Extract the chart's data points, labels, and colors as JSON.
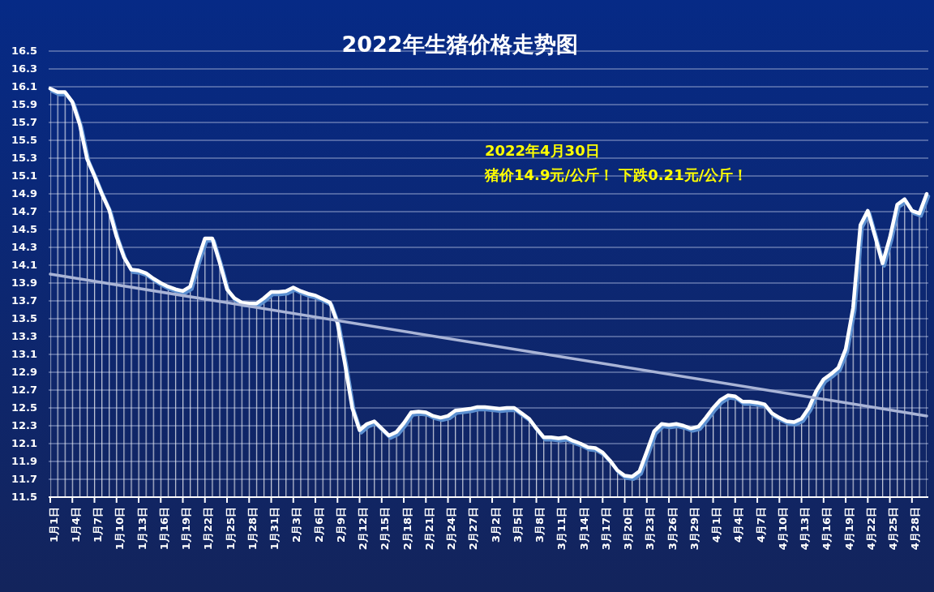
{
  "chart_data": {
    "type": "area",
    "title": "2022年生猪价格走势图",
    "annotations": [
      "2022年4月30日",
      "猪价14.9元/公斤！ 下跌0.21元/公斤！"
    ],
    "x": [
      "2022-01-01",
      "2022-01-02",
      "2022-01-03",
      "2022-01-04",
      "2022-01-05",
      "2022-01-06",
      "2022-01-07",
      "2022-01-08",
      "2022-01-09",
      "2022-01-10",
      "2022-01-11",
      "2022-01-12",
      "2022-01-13",
      "2022-01-14",
      "2022-01-15",
      "2022-01-16",
      "2022-01-17",
      "2022-01-18",
      "2022-01-19",
      "2022-01-20",
      "2022-01-21",
      "2022-01-22",
      "2022-01-23",
      "2022-01-24",
      "2022-01-25",
      "2022-01-26",
      "2022-01-27",
      "2022-01-28",
      "2022-01-29",
      "2022-01-30",
      "2022-01-31",
      "2022-02-01",
      "2022-02-02",
      "2022-02-03",
      "2022-02-04",
      "2022-02-05",
      "2022-02-06",
      "2022-02-07",
      "2022-02-08",
      "2022-02-09",
      "2022-02-10",
      "2022-02-11",
      "2022-02-12",
      "2022-02-13",
      "2022-02-14",
      "2022-02-15",
      "2022-02-16",
      "2022-02-17",
      "2022-02-18",
      "2022-02-19",
      "2022-02-20",
      "2022-02-21",
      "2022-02-22",
      "2022-02-23",
      "2022-02-24",
      "2022-02-25",
      "2022-02-26",
      "2022-02-27",
      "2022-02-28",
      "2022-03-01",
      "2022-03-02",
      "2022-03-03",
      "2022-03-04",
      "2022-03-05",
      "2022-03-06",
      "2022-03-07",
      "2022-03-08",
      "2022-03-09",
      "2022-03-10",
      "2022-03-11",
      "2022-03-12",
      "2022-03-13",
      "2022-03-14",
      "2022-03-15",
      "2022-03-16",
      "2022-03-17",
      "2022-03-18",
      "2022-03-19",
      "2022-03-20",
      "2022-03-21",
      "2022-03-22",
      "2022-03-23",
      "2022-03-24",
      "2022-03-25",
      "2022-03-26",
      "2022-03-27",
      "2022-03-28",
      "2022-03-29",
      "2022-03-30",
      "2022-03-31",
      "2022-04-01",
      "2022-04-02",
      "2022-04-03",
      "2022-04-04",
      "2022-04-05",
      "2022-04-06",
      "2022-04-07",
      "2022-04-08",
      "2022-04-09",
      "2022-04-10",
      "2022-04-11",
      "2022-04-12",
      "2022-04-13",
      "2022-04-14",
      "2022-04-15",
      "2022-04-16",
      "2022-04-17",
      "2022-04-18",
      "2022-04-19",
      "2022-04-20",
      "2022-04-21",
      "2022-04-22",
      "2022-04-23",
      "2022-04-24",
      "2022-04-25",
      "2022-04-26",
      "2022-04-27",
      "2022-04-28",
      "2022-04-29",
      "2022-04-30"
    ],
    "series": [
      {
        "color": "#ffffff",
        "values": [
          16.08,
          16.04,
          16.04,
          15.93,
          15.68,
          15.29,
          15.1,
          14.9,
          14.72,
          14.42,
          14.19,
          14.05,
          14.04,
          14.01,
          13.95,
          13.9,
          13.86,
          13.83,
          13.81,
          13.86,
          14.15,
          14.4,
          14.4,
          14.13,
          13.83,
          13.73,
          13.68,
          13.67,
          13.67,
          13.73,
          13.8,
          13.8,
          13.81,
          13.85,
          13.81,
          13.78,
          13.76,
          13.72,
          13.68,
          13.45,
          13.0,
          12.5,
          12.25,
          12.32,
          12.35,
          12.27,
          12.19,
          12.23,
          12.33,
          12.45,
          12.46,
          12.45,
          12.41,
          12.39,
          12.41,
          12.47,
          12.48,
          12.49,
          12.51,
          12.51,
          12.5,
          12.49,
          12.5,
          12.5,
          12.44,
          12.38,
          12.27,
          12.17,
          12.17,
          12.16,
          12.17,
          12.13,
          12.1,
          12.06,
          12.05,
          12.0,
          11.91,
          11.8,
          11.74,
          11.73,
          11.79,
          12.01,
          12.24,
          12.32,
          12.31,
          12.32,
          12.3,
          12.27,
          12.29,
          12.39,
          12.5,
          12.59,
          12.64,
          12.63,
          12.57,
          12.57,
          12.56,
          12.54,
          12.44,
          12.39,
          12.35,
          12.34,
          12.38,
          12.5,
          12.69,
          12.82,
          12.88,
          12.95,
          13.16,
          13.62,
          14.55,
          14.71,
          14.42,
          14.12,
          14.41,
          14.78,
          14.84,
          14.71,
          14.68,
          14.9
        ]
      },
      {
        "type": "line",
        "color": "#a9b4d6",
        "x": [
          "2022-01-01",
          "2022-04-30"
        ],
        "values": [
          14.0,
          12.41
        ]
      }
    ],
    "xlim": [
      "2022-01-01",
      "2022-04-30"
    ],
    "xticks": [
      {
        "value": "2022-01-01",
        "label": "1月1日"
      },
      {
        "value": "2022-01-04",
        "label": "1月4日"
      },
      {
        "value": "2022-01-07",
        "label": "1月7日"
      },
      {
        "value": "2022-01-10",
        "label": "1月10日"
      },
      {
        "value": "2022-01-13",
        "label": "1月13日"
      },
      {
        "value": "2022-01-16",
        "label": "1月16日"
      },
      {
        "value": "2022-01-19",
        "label": "1月19日"
      },
      {
        "value": "2022-01-22",
        "label": "1月22日"
      },
      {
        "value": "2022-01-25",
        "label": "1月25日"
      },
      {
        "value": "2022-01-28",
        "label": "1月28日"
      },
      {
        "value": "2022-01-31",
        "label": "1月31日"
      },
      {
        "value": "2022-02-03",
        "label": "2月3日"
      },
      {
        "value": "2022-02-06",
        "label": "2月6日"
      },
      {
        "value": "2022-02-09",
        "label": "2月9日"
      },
      {
        "value": "2022-02-12",
        "label": "2月12日"
      },
      {
        "value": "2022-02-15",
        "label": "2月15日"
      },
      {
        "value": "2022-02-18",
        "label": "2月18日"
      },
      {
        "value": "2022-02-21",
        "label": "2月21日"
      },
      {
        "value": "2022-02-24",
        "label": "2月24日"
      },
      {
        "value": "2022-02-27",
        "label": "2月27日"
      },
      {
        "value": "2022-03-02",
        "label": "3月2日"
      },
      {
        "value": "2022-03-05",
        "label": "3月5日"
      },
      {
        "value": "2022-03-08",
        "label": "3月8日"
      },
      {
        "value": "2022-03-11",
        "label": "3月11日"
      },
      {
        "value": "2022-03-14",
        "label": "3月14日"
      },
      {
        "value": "2022-03-17",
        "label": "3月17日"
      },
      {
        "value": "2022-03-20",
        "label": "3月20日"
      },
      {
        "value": "2022-03-23",
        "label": "3月23日"
      },
      {
        "value": "2022-03-26",
        "label": "3月26日"
      },
      {
        "value": "2022-03-29",
        "label": "3月29日"
      },
      {
        "value": "2022-04-01",
        "label": "4月1日"
      },
      {
        "value": "2022-04-04",
        "label": "4月4日"
      },
      {
        "value": "2022-04-07",
        "label": "4月7日"
      },
      {
        "value": "2022-04-10",
        "label": "4月10日"
      },
      {
        "value": "2022-04-13",
        "label": "4月13日"
      },
      {
        "value": "2022-04-16",
        "label": "4月16日"
      },
      {
        "value": "2022-04-19",
        "label": "4月19日"
      },
      {
        "value": "2022-04-22",
        "label": "4月22日"
      },
      {
        "value": "2022-04-25",
        "label": "4月25日"
      },
      {
        "value": "2022-04-28",
        "label": "4月28日"
      }
    ],
    "ylim": [
      11.5,
      16.5
    ],
    "yticks": [
      11.5,
      11.7,
      11.9,
      12.1,
      12.3,
      12.5,
      12.7,
      12.9,
      13.1,
      13.3,
      13.5,
      13.7,
      13.9,
      14.1,
      14.3,
      14.5,
      14.7,
      14.9,
      15.1,
      15.3,
      15.5,
      15.7,
      15.9,
      16.1,
      16.3,
      16.5
    ],
    "grid": "y"
  }
}
